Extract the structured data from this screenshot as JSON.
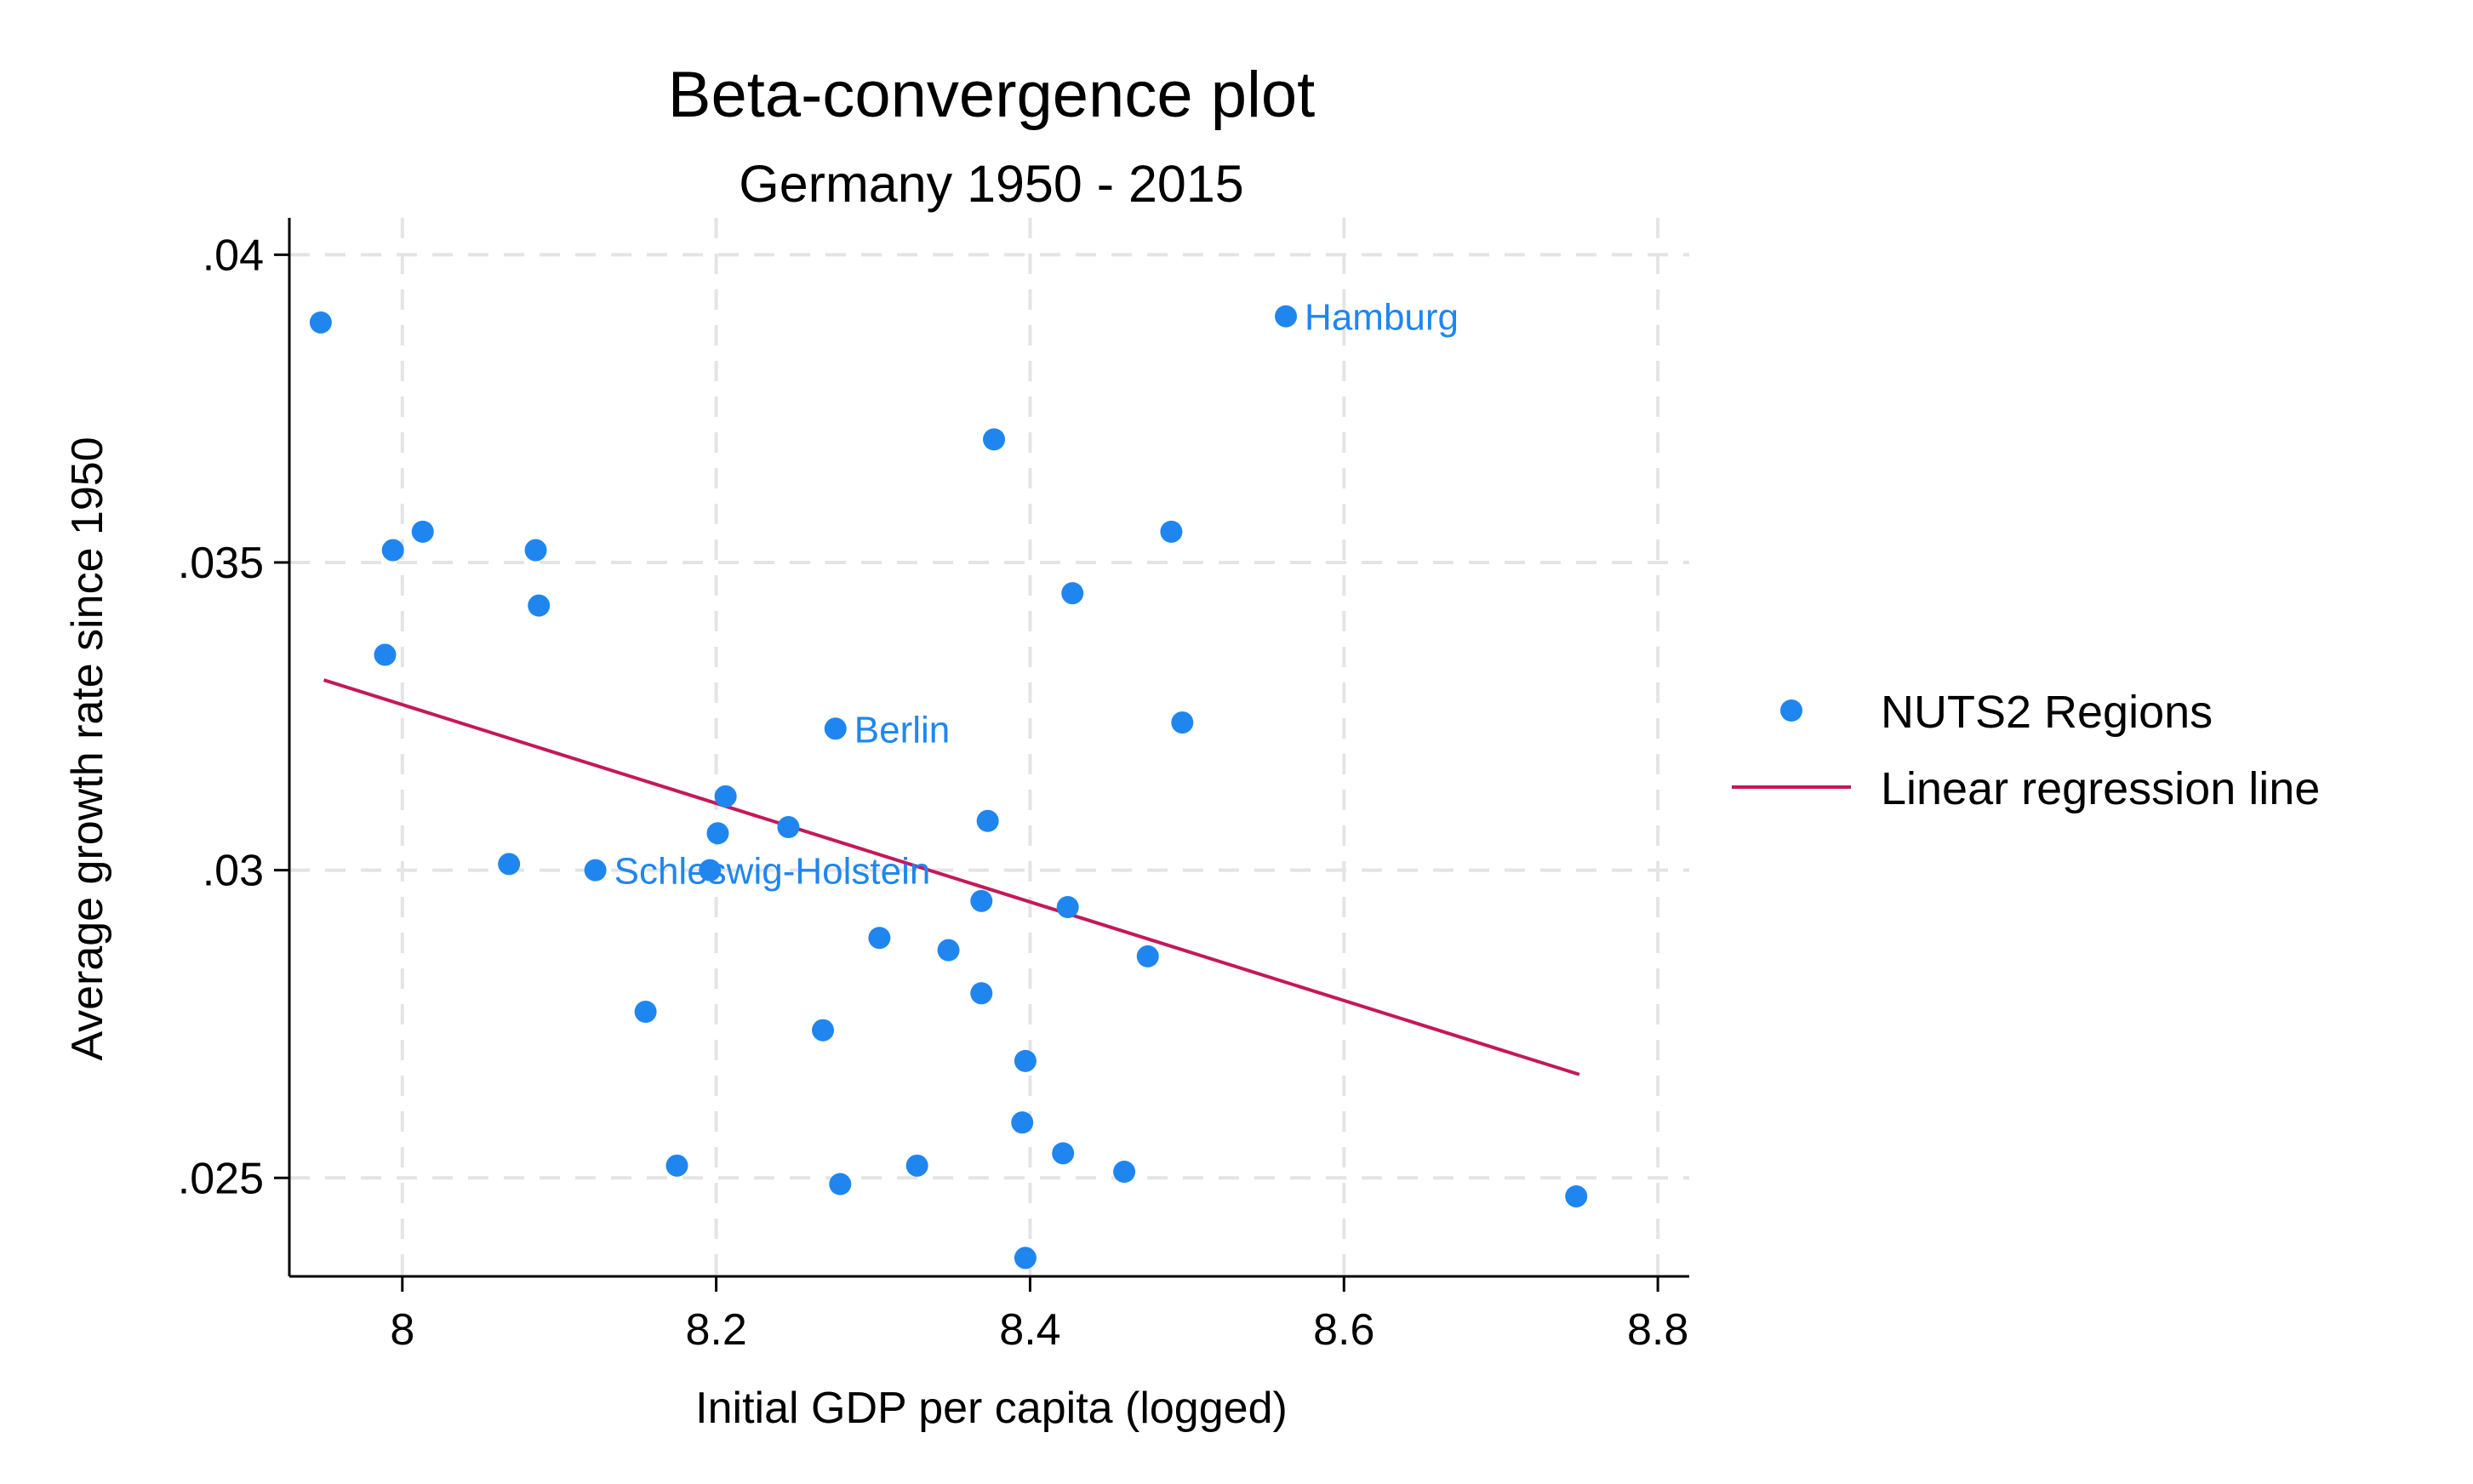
{
  "chart_data": {
    "type": "scatter",
    "title": "Beta-convergence plot",
    "subtitle": "Germany 1950 - 2015",
    "xlabel": "Initial GDP per capita (logged)",
    "ylabel": "Average growth rate since 1950",
    "xlim": [
      7.928,
      8.82
    ],
    "ylim": [
      0.0234,
      0.0406
    ],
    "x_ticks": [
      8,
      8.2,
      8.4,
      8.6,
      8.8
    ],
    "x_tick_labels": [
      "8",
      "8.2",
      "8.4",
      "8.6",
      "8.8"
    ],
    "y_ticks": [
      0.025,
      0.03,
      0.035,
      0.04
    ],
    "y_tick_labels": [
      ".025",
      ".03",
      ".035",
      ".04"
    ],
    "grid": true,
    "legend_position": "right",
    "colors": {
      "points": "#1f86f0",
      "line": "#c4185a",
      "grid": "#e4e4e4",
      "axis": "#000000"
    },
    "series": [
      {
        "name": "NUTS2 Regions",
        "kind": "scatter",
        "points": [
          {
            "x": 7.948,
            "y": 0.0389
          },
          {
            "x": 7.989,
            "y": 0.0335
          },
          {
            "x": 7.994,
            "y": 0.0352
          },
          {
            "x": 8.013,
            "y": 0.0355
          },
          {
            "x": 8.068,
            "y": 0.0301
          },
          {
            "x": 8.085,
            "y": 0.0352
          },
          {
            "x": 8.087,
            "y": 0.0343
          },
          {
            "x": 8.123,
            "y": 0.03,
            "label": "Schleswig-Holstein"
          },
          {
            "x": 8.155,
            "y": 0.0277
          },
          {
            "x": 8.175,
            "y": 0.0252
          },
          {
            "x": 8.196,
            "y": 0.03
          },
          {
            "x": 8.201,
            "y": 0.0306
          },
          {
            "x": 8.206,
            "y": 0.0312
          },
          {
            "x": 8.246,
            "y": 0.0307
          },
          {
            "x": 8.268,
            "y": 0.0274
          },
          {
            "x": 8.276,
            "y": 0.0323,
            "label": "Berlin"
          },
          {
            "x": 8.279,
            "y": 0.0249
          },
          {
            "x": 8.304,
            "y": 0.0289
          },
          {
            "x": 8.328,
            "y": 0.0252
          },
          {
            "x": 8.348,
            "y": 0.0287
          },
          {
            "x": 8.369,
            "y": 0.0295
          },
          {
            "x": 8.369,
            "y": 0.028
          },
          {
            "x": 8.373,
            "y": 0.0308
          },
          {
            "x": 8.377,
            "y": 0.037
          },
          {
            "x": 8.395,
            "y": 0.0259
          },
          {
            "x": 8.397,
            "y": 0.0269
          },
          {
            "x": 8.397,
            "y": 0.0237
          },
          {
            "x": 8.421,
            "y": 0.0254
          },
          {
            "x": 8.424,
            "y": 0.0294
          },
          {
            "x": 8.427,
            "y": 0.0345
          },
          {
            "x": 8.46,
            "y": 0.0251
          },
          {
            "x": 8.475,
            "y": 0.0286
          },
          {
            "x": 8.49,
            "y": 0.0355
          },
          {
            "x": 8.497,
            "y": 0.0324
          },
          {
            "x": 8.563,
            "y": 0.039,
            "label": "Hamburg"
          },
          {
            "x": 8.748,
            "y": 0.0247
          }
        ]
      },
      {
        "name": "Linear regression line",
        "kind": "line",
        "points": [
          {
            "x": 7.95,
            "y": 0.03309
          },
          {
            "x": 8.75,
            "y": 0.02668
          }
        ]
      }
    ]
  }
}
